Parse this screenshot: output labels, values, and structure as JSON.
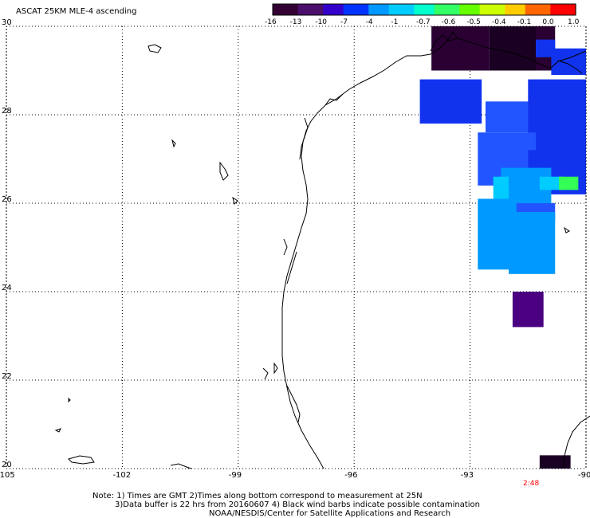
{
  "title": "ASCAT 25KM MLE-4 ascending",
  "colorbar": {
    "labels": [
      "-16",
      "-13",
      "-10",
      "-7",
      "-4",
      "-1",
      "-0.7",
      "-0.6",
      "-0.5",
      "-0.4",
      "-0.1",
      "0.0",
      "1.0"
    ],
    "colors": [
      "#330033",
      "#4a0f6b",
      "#3300cc",
      "#0033ff",
      "#0099ff",
      "#00ccff",
      "#00ffcc",
      "#33ff66",
      "#66ff00",
      "#ccff00",
      "#ffcc00",
      "#ff6600",
      "#ff0000"
    ]
  },
  "axes": {
    "x_labels": [
      "-105",
      "-102",
      "-99",
      "-96",
      "-93",
      "-90"
    ],
    "y_labels": [
      "30",
      "28",
      "26",
      "24",
      "22",
      "20"
    ],
    "lon_range": [
      -105,
      -90
    ],
    "lat_range": [
      20,
      30
    ],
    "grid": true
  },
  "time_label": "2:48",
  "time_color": "#ff0000",
  "notes": [
    "Note: 1) Times are GMT 2)Times along bottom correspond to measurement at 25N",
    "3)Data buffer is 22 hrs from 20160607 4) Black wind barbs indicate possible contamination",
    "NOAA/NESDIS/Center for Satellite Applications and Research"
  ],
  "swath_colors": {
    "dark_purple": "#2a0033",
    "very_dark": "#1a0022",
    "indigo": "#4a0080",
    "blue": "#1133ee",
    "blue_mid": "#2255ff",
    "light_blue": "#0099ff",
    "cyan": "#00ccff",
    "green": "#33ff55"
  }
}
